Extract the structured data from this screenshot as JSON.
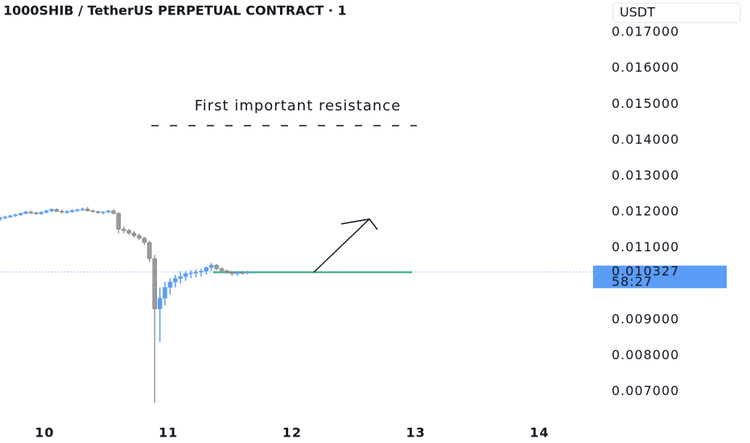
{
  "chart_data": {
    "type": "candlestick",
    "title": "1000SHIB / TetherUS PERPETUAL CONTRACT · 1",
    "currency": "USDT",
    "annotation": "First important resistance",
    "countdown": "58:27",
    "last_price": 0.010327,
    "support_level": 0.01032,
    "up_color": "#5b9cf6",
    "down_color": "#9a9a9a",
    "support_color": "#4db39a",
    "price_label_color": "#5b9cf6",
    "xlim": [
      9.64,
      14.42
    ],
    "xticks": [
      10,
      11,
      12,
      13,
      14
    ],
    "ylim": [
      0.00624,
      0.0179
    ],
    "yticks": [
      {
        "value": 0.007,
        "label": "0.007000"
      },
      {
        "value": 0.008,
        "label": "0.008000"
      },
      {
        "value": 0.009,
        "label": "0.009000"
      },
      {
        "value": 0.011,
        "label": "0.011000"
      },
      {
        "value": 0.012,
        "label": "0.012000"
      },
      {
        "value": 0.013,
        "label": "0.013000"
      },
      {
        "value": 0.014,
        "label": "0.014000"
      },
      {
        "value": 0.015,
        "label": "0.015000"
      },
      {
        "value": 0.016,
        "label": "0.016000"
      },
      {
        "value": 0.017,
        "label": "0.017000"
      }
    ],
    "x": [
      9.64,
      9.682,
      9.723,
      9.765,
      9.807,
      9.848,
      9.89,
      9.932,
      9.973,
      10.015,
      10.057,
      10.098,
      10.14,
      10.182,
      10.223,
      10.265,
      10.307,
      10.348,
      10.39,
      10.432,
      10.473,
      10.515,
      10.557,
      10.598,
      10.64,
      10.682,
      10.723,
      10.765,
      10.807,
      10.848,
      10.89,
      10.932,
      10.973,
      11.015,
      11.057,
      11.098,
      11.14,
      11.182,
      11.223,
      11.265,
      11.307,
      11.348,
      11.39,
      11.432,
      11.473,
      11.515,
      11.557,
      11.598,
      11.64
    ],
    "open": [
      0.0118,
      0.01184,
      0.01186,
      0.01189,
      0.01192,
      0.01196,
      0.012,
      0.01197,
      0.01195,
      0.01199,
      0.01203,
      0.01207,
      0.01202,
      0.012,
      0.01201,
      0.01204,
      0.01206,
      0.01208,
      0.01203,
      0.01201,
      0.01198,
      0.012,
      0.01203,
      0.01196,
      0.01152,
      0.01148,
      0.01141,
      0.01134,
      0.01127,
      0.01115,
      0.0107,
      0.0093,
      0.0096,
      0.0099,
      0.01005,
      0.01015,
      0.0102,
      0.01028,
      0.0103,
      0.01033,
      0.01035,
      0.01045,
      0.01052,
      0.01042,
      0.01036,
      0.01032,
      0.01028,
      0.01031,
      0.0103
    ],
    "high": [
      0.01186,
      0.0119,
      0.01192,
      0.01195,
      0.01198,
      0.01203,
      0.01204,
      0.01201,
      0.01202,
      0.01206,
      0.0121,
      0.0121,
      0.01206,
      0.01205,
      0.01207,
      0.01209,
      0.01212,
      0.01214,
      0.01207,
      0.01204,
      0.01202,
      0.01205,
      0.01208,
      0.01199,
      0.0116,
      0.01153,
      0.01147,
      0.0114,
      0.01131,
      0.0112,
      0.0108,
      0.0099,
      0.01005,
      0.01015,
      0.01025,
      0.01035,
      0.01035,
      0.01038,
      0.0104,
      0.01042,
      0.01048,
      0.01058,
      0.01055,
      0.01046,
      0.0104,
      0.01036,
      0.01035,
      0.01036,
      0.01036
    ],
    "low": [
      0.01174,
      0.0118,
      0.01183,
      0.01186,
      0.01189,
      0.01193,
      0.01194,
      0.01192,
      0.01192,
      0.01196,
      0.01199,
      0.012,
      0.01196,
      0.01195,
      0.01197,
      0.012,
      0.01202,
      0.01201,
      0.01198,
      0.01195,
      0.01193,
      0.01196,
      0.01193,
      0.0114,
      0.0114,
      0.01136,
      0.01128,
      0.01122,
      0.01108,
      0.0106,
      0.00668,
      0.00838,
      0.0094,
      0.0097,
      0.0099,
      0.01,
      0.01008,
      0.01015,
      0.01018,
      0.0102,
      0.01025,
      0.01035,
      0.01038,
      0.01032,
      0.01028,
      0.01022,
      0.01022,
      0.01025,
      0.01026
    ],
    "close": [
      0.01184,
      0.01186,
      0.01189,
      0.01192,
      0.01196,
      0.012,
      0.01197,
      0.01195,
      0.01199,
      0.01203,
      0.01207,
      0.01202,
      0.012,
      0.01201,
      0.01204,
      0.01206,
      0.01208,
      0.01203,
      0.01201,
      0.01198,
      0.012,
      0.01203,
      0.01196,
      0.01152,
      0.01148,
      0.01141,
      0.01134,
      0.01127,
      0.01115,
      0.0107,
      0.0093,
      0.0096,
      0.0099,
      0.01005,
      0.01015,
      0.0102,
      0.01028,
      0.0103,
      0.01033,
      0.01035,
      0.01045,
      0.01052,
      0.01042,
      0.01036,
      0.01032,
      0.01028,
      0.01031,
      0.0103,
      0.01033
    ]
  }
}
